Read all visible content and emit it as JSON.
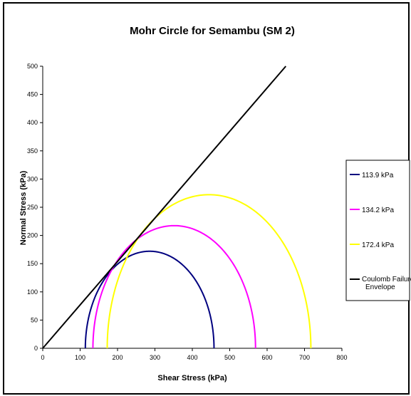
{
  "chart_data": {
    "type": "line",
    "title": "Mohr Circle for Semambu (SM 2)",
    "xlabel": "Shear Stress (kPa)",
    "ylabel": "Normal Stress (kPa)",
    "xlim": [
      0,
      800
    ],
    "ylim": [
      0,
      500
    ],
    "xticks": [
      "0",
      "100",
      "200",
      "300",
      "400",
      "500",
      "600",
      "700",
      "800"
    ],
    "yticks": [
      "0",
      "50",
      "100",
      "150",
      "200",
      "250",
      "300",
      "350",
      "400",
      "450",
      "500"
    ],
    "grid": false,
    "legend_position": "right",
    "series": [
      {
        "name": "113.9 kPa",
        "kind": "semicircle",
        "sigma3": 113.9,
        "sigma1": 458,
        "color": "#00007f"
      },
      {
        "name": "134.2 kPa",
        "kind": "semicircle",
        "sigma3": 134.2,
        "sigma1": 569,
        "color": "#ff00ff"
      },
      {
        "name": "172.4 kPa",
        "kind": "semicircle",
        "sigma3": 172.4,
        "sigma1": 717,
        "color": "#ffff00"
      },
      {
        "name": "Coulomb Failure Envelope",
        "kind": "line",
        "x": [
          0,
          650
        ],
        "y": [
          0,
          500
        ],
        "color": "#000000"
      }
    ]
  }
}
